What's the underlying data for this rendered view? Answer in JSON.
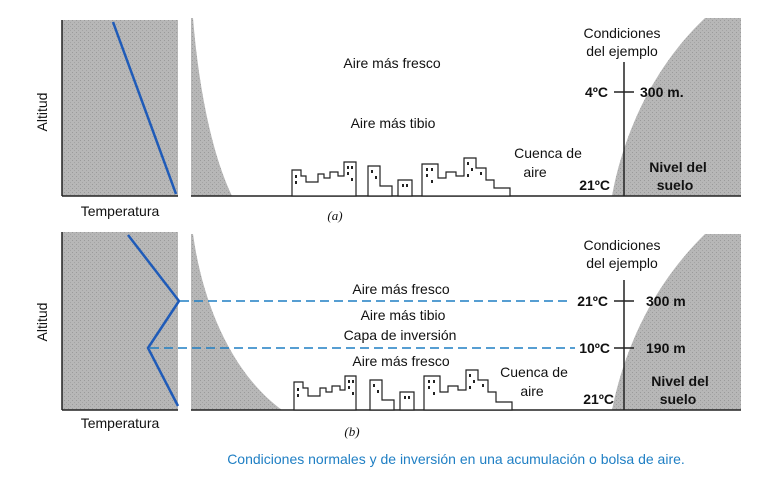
{
  "caption": "Condiciones normales y de inversión en una acumulación o bolsa de aire.",
  "colors": {
    "profile_line": "#1f5bb8",
    "dashed_line": "#1f7fc4",
    "shade": "#b9b9b9",
    "caption": "#1f7fc4"
  },
  "panel_a": {
    "letter": "(a)",
    "axis_y": "Altitud",
    "axis_x": "Temperatura",
    "header_line1": "Condiciones",
    "header_line2": "del ejemplo",
    "layer_top": "Aire más fresco",
    "layer_bottom": "Aire más tibio",
    "basin_line1": "Cuenca de",
    "basin_line2": "aire",
    "temp_top": "4ºC",
    "height_top": "300 m.",
    "temp_ground": "21ºC",
    "ground_line1": "Nivel del",
    "ground_line2": "suelo"
  },
  "panel_b": {
    "letter": "(b)",
    "axis_y": "Altitud",
    "axis_x": "Temperatura",
    "header_line1": "Condiciones",
    "header_line2": "del ejemplo",
    "layer1": "Aire más fresco",
    "layer2": "Aire más tibio",
    "layer3": "Capa de inversión",
    "layer4": "Aire más fresco",
    "basin_line1": "Cuenca de",
    "basin_line2": "aire",
    "temp_top": "21ºC",
    "height_top": "300 m",
    "temp_mid": "10ºC",
    "height_mid": "190 m",
    "temp_ground": "21ºC",
    "ground_line1": "Nivel del",
    "ground_line2": "suelo"
  }
}
